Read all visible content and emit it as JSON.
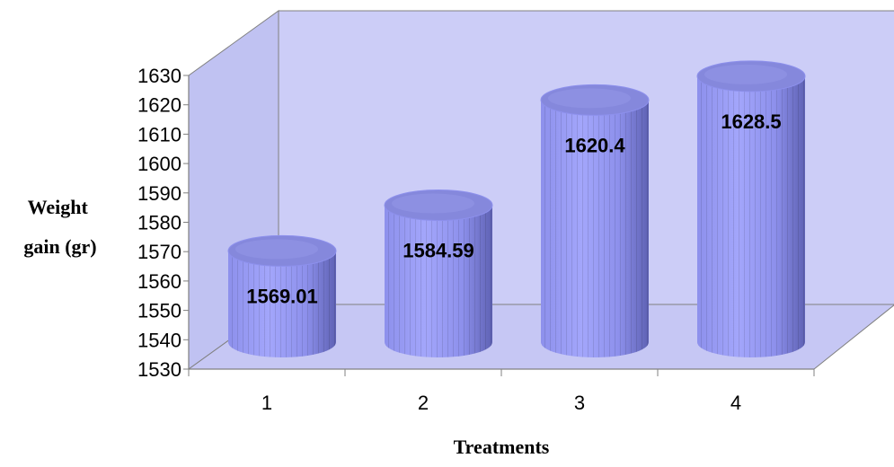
{
  "chart_data": {
    "type": "bar",
    "style": "3d-cylinder",
    "categories": [
      "1",
      "2",
      "3",
      "4"
    ],
    "values": [
      1569.01,
      1584.59,
      1620.4,
      1628.5
    ],
    "data_labels": [
      "1569.01",
      "1584.59",
      "1620.4",
      "1628.5"
    ],
    "title": "",
    "xlabel": "Treatments",
    "ylabel_lines": [
      "Weight",
      "gain (gr)"
    ],
    "ylim": [
      1530,
      1630
    ],
    "yticks": [
      1530,
      1540,
      1550,
      1560,
      1570,
      1580,
      1590,
      1600,
      1610,
      1620,
      1630
    ],
    "grid": false,
    "legend": "none",
    "colors": {
      "wall": "#cccdf7",
      "wall_side": "#c0c2f2",
      "floor": "#c6c7f4",
      "bar_light": "#a3a6fb",
      "bar_mid": "#8d90ec",
      "bar_dark": "#5f62b4",
      "bar_top": "#8588dc"
    }
  }
}
